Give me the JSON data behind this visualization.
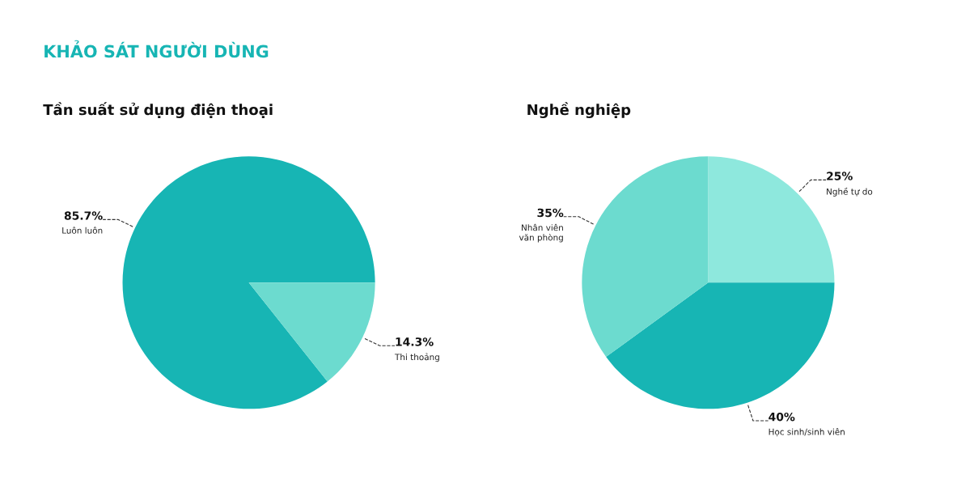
{
  "chart_data": [
    {
      "type": "pie",
      "title": "KHẢO SÁT NGƯỜI DÙNG",
      "subtitle": "Tần suất sử dụng điện thoại",
      "categories": [
        "Luôn luôn",
        "Thi thoảng"
      ],
      "values": [
        85.7,
        14.3
      ],
      "value_labels": [
        "85.7%",
        "14.3%"
      ],
      "colors": [
        "#17b5b4",
        "#6cdbcf"
      ]
    },
    {
      "type": "pie",
      "title": "Nghề nghiệp",
      "categories": [
        "Nghề tự do",
        "Học sinh/sinh viên",
        "Nhân viên\nvăn phòng"
      ],
      "values": [
        25,
        40,
        35
      ],
      "value_labels": [
        "25%",
        "40%",
        "35%"
      ],
      "colors": [
        "#8ee8dd",
        "#17b5b4",
        "#6cdbcf"
      ]
    }
  ]
}
